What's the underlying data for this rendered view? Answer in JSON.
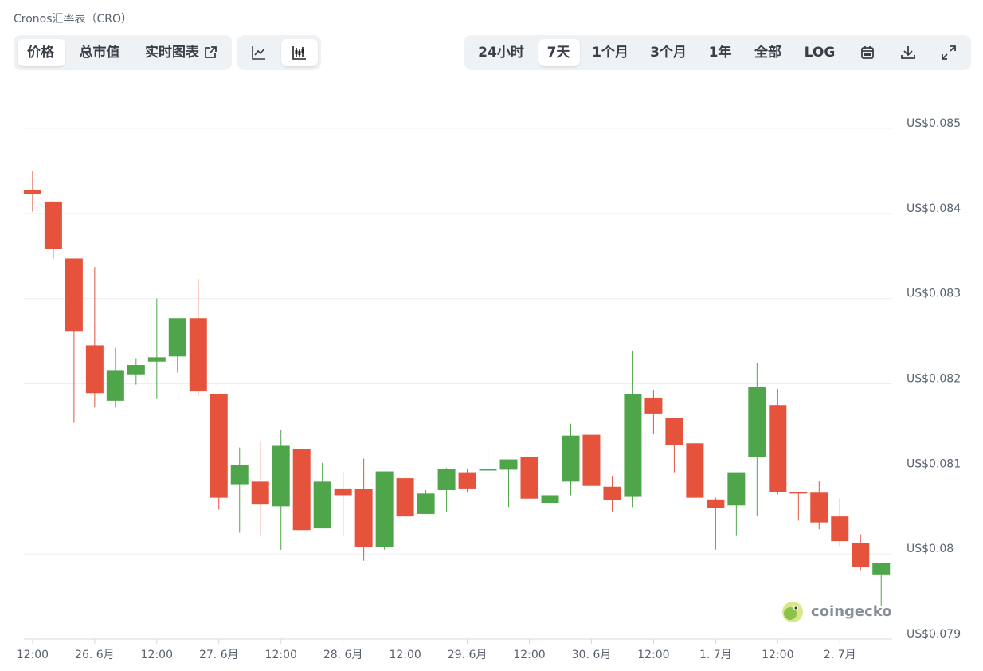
{
  "header": {
    "title": "Cronos汇率表（CRO）"
  },
  "toolbar": {
    "view_tabs": [
      "价格",
      "总市值",
      "实时图表"
    ],
    "range_tabs": [
      "24小时",
      "7天",
      "1个月",
      "3个月",
      "1年",
      "全部",
      "LOG"
    ]
  },
  "chart_data": {
    "type": "candlestick",
    "x": [
      0,
      1,
      2,
      3,
      4,
      5,
      6,
      7,
      8,
      9,
      10,
      11,
      12,
      13,
      14,
      15,
      16,
      17,
      18,
      19,
      20,
      21,
      22,
      23,
      24,
      25,
      26,
      27,
      28,
      29,
      30,
      31,
      32,
      33,
      34,
      35,
      36,
      37,
      38,
      39,
      40,
      41
    ],
    "open": [
      0.08427,
      0.08414,
      0.08347,
      0.08245,
      0.0818,
      0.08211,
      0.08226,
      0.08232,
      0.08277,
      0.08188,
      0.08082,
      0.08085,
      0.08056,
      0.08123,
      0.0803,
      0.08077,
      0.08076,
      0.08008,
      0.08089,
      0.08047,
      0.08075,
      0.08096,
      0.08098,
      0.08099,
      0.08114,
      0.0806,
      0.08085,
      0.0814,
      0.08079,
      0.08067,
      0.08183,
      0.0816,
      0.0813,
      0.08064,
      0.08057,
      0.08114,
      0.08175,
      0.08073,
      0.08072,
      0.08044,
      0.08013,
      0.07976
    ],
    "high": [
      0.0845,
      0.08414,
      0.08347,
      0.08337,
      0.08242,
      0.0823,
      0.083,
      0.08277,
      0.08323,
      0.08188,
      0.08125,
      0.08133,
      0.08146,
      0.08123,
      0.08107,
      0.08096,
      0.08112,
      0.08097,
      0.08092,
      0.08075,
      0.08101,
      0.081,
      0.08125,
      0.08111,
      0.08114,
      0.08094,
      0.08153,
      0.0814,
      0.08092,
      0.08239,
      0.08192,
      0.0816,
      0.08132,
      0.08066,
      0.08096,
      0.08224,
      0.08194,
      0.08073,
      0.08086,
      0.08065,
      0.08023,
      0.07989
    ],
    "low": [
      0.08402,
      0.08347,
      0.08154,
      0.08172,
      0.08172,
      0.08199,
      0.08182,
      0.08213,
      0.08186,
      0.08052,
      0.08025,
      0.08021,
      0.08005,
      0.08028,
      0.0803,
      0.08022,
      0.07992,
      0.08005,
      0.08042,
      0.08047,
      0.08049,
      0.08072,
      0.08098,
      0.08055,
      0.08065,
      0.08055,
      0.08069,
      0.0808,
      0.0805,
      0.08055,
      0.08141,
      0.08096,
      0.08066,
      0.08005,
      0.08022,
      0.08045,
      0.0807,
      0.08039,
      0.08029,
      0.08009,
      0.07981,
      0.07939
    ],
    "close": [
      0.08423,
      0.08358,
      0.08262,
      0.08189,
      0.08216,
      0.08222,
      0.08231,
      0.08277,
      0.08191,
      0.08066,
      0.08105,
      0.08058,
      0.08127,
      0.08028,
      0.08085,
      0.08069,
      0.08008,
      0.08097,
      0.08044,
      0.08071,
      0.081,
      0.08077,
      0.081,
      0.08111,
      0.08065,
      0.08069,
      0.08139,
      0.0808,
      0.08063,
      0.08188,
      0.08165,
      0.08128,
      0.08066,
      0.08054,
      0.08096,
      0.08196,
      0.08073,
      0.08071,
      0.08037,
      0.08015,
      0.07985,
      0.07989
    ],
    "up_color": "#4fa64a",
    "down_color": "#e5533d",
    "xlim": [
      -0.42,
      41.53
    ],
    "xticks": [
      {
        "value": 0,
        "label": "12:00"
      },
      {
        "value": 3,
        "label": "26. 6月"
      },
      {
        "value": 6,
        "label": "12:00"
      },
      {
        "value": 9,
        "label": "27. 6月"
      },
      {
        "value": 12,
        "label": "12:00"
      },
      {
        "value": 15,
        "label": "28. 6月"
      },
      {
        "value": 18,
        "label": "12:00"
      },
      {
        "value": 21,
        "label": "29. 6月"
      },
      {
        "value": 24,
        "label": "12:00"
      },
      {
        "value": 27,
        "label": "30. 6月"
      },
      {
        "value": 30,
        "label": "12:00"
      },
      {
        "value": 33,
        "label": "1. 7月"
      },
      {
        "value": 36,
        "label": "12:00"
      },
      {
        "value": 39,
        "label": "2. 7月"
      }
    ],
    "ylim": [
      0.079,
      0.085
    ],
    "yticks": [
      {
        "value": 0.079,
        "label": "US$0.079"
      },
      {
        "value": 0.08,
        "label": "US$0.08"
      },
      {
        "value": 0.081,
        "label": "US$0.081"
      },
      {
        "value": 0.082,
        "label": "US$0.082"
      },
      {
        "value": 0.083,
        "label": "US$0.083"
      },
      {
        "value": 0.084,
        "label": "US$0.084"
      },
      {
        "value": 0.085,
        "label": "US$0.085"
      }
    ],
    "grid": true,
    "watermark": "coingecko"
  }
}
